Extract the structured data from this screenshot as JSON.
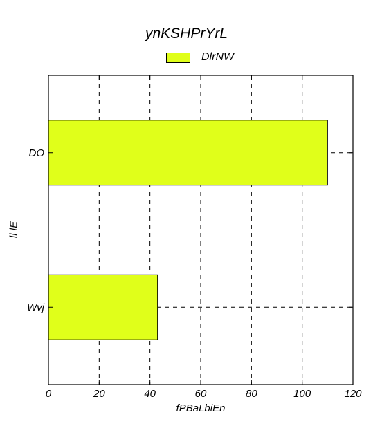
{
  "chart_data": {
    "type": "bar",
    "orientation": "horizontal",
    "title": "ynKSHPrYrL",
    "xlabel": "fPBaLbiEn",
    "ylabel": "ll lE",
    "categories": [
      "DO",
      "Wvj"
    ],
    "series": [
      {
        "name": "DlrNW",
        "values": [
          110,
          43
        ],
        "color": "#e0ff1a"
      }
    ],
    "xlim": [
      0,
      120
    ],
    "xticks": [
      0,
      20,
      40,
      60,
      80,
      100,
      120
    ],
    "grid": true,
    "grid_style": "dashed",
    "legend_position": "top-center"
  }
}
